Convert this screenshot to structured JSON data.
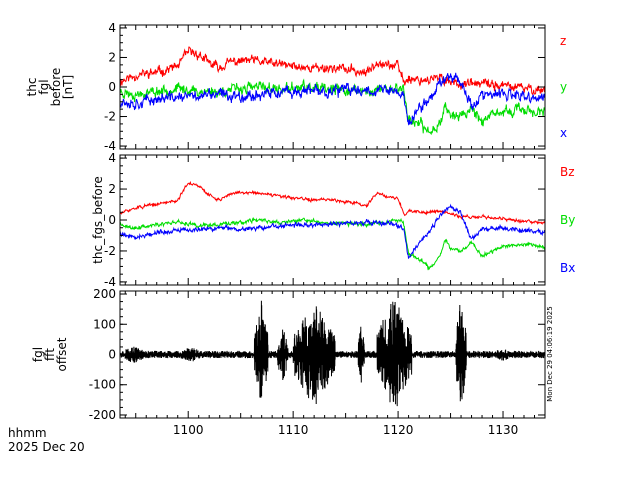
{
  "footer": {
    "time_format": "hhmm",
    "date": "2025 Dec 20"
  },
  "stamp": "Mon Dec 29 04:06:19 2025",
  "colors": {
    "red": "#ff0000",
    "green": "#00dd00",
    "blue": "#0000ff",
    "black": "#000000"
  },
  "chart_data": [
    {
      "type": "line",
      "ylabel_lines": [
        "thc",
        "fgl",
        "before",
        "[nT]"
      ],
      "xlim": [
        1093.5,
        1134
      ],
      "ylim": [
        -4.2,
        4.2
      ],
      "yticks": [
        -4,
        -2,
        0,
        2,
        4
      ],
      "xticks": [
        1100,
        1110,
        1120,
        1130
      ],
      "show_xtick_labels": false,
      "legend": "right",
      "series": [
        {
          "name": "z",
          "color": "#ff0000",
          "noise": 0.25,
          "seed": 11,
          "points": [
            [
              1093.5,
              0.4
            ],
            [
              1095,
              0.8
            ],
            [
              1097,
              1.0
            ],
            [
              1099,
              1.4
            ],
            [
              1100,
              2.4
            ],
            [
              1101,
              2.2
            ],
            [
              1102,
              1.6
            ],
            [
              1103,
              1.3
            ],
            [
              1104,
              1.7
            ],
            [
              1106,
              1.8
            ],
            [
              1108,
              1.6
            ],
            [
              1110,
              1.4
            ],
            [
              1112,
              1.3
            ],
            [
              1114,
              1.3
            ],
            [
              1116,
              1.1
            ],
            [
              1117,
              0.9
            ],
            [
              1118,
              1.8
            ],
            [
              1119,
              1.5
            ],
            [
              1120,
              1.4
            ],
            [
              1120.6,
              0.3
            ],
            [
              1121,
              0.6
            ],
            [
              1122,
              0.5
            ],
            [
              1123,
              0.5
            ],
            [
              1124,
              0.6
            ],
            [
              1126,
              0.2
            ],
            [
              1128,
              0.2
            ],
            [
              1130,
              0.1
            ],
            [
              1132,
              -0.1
            ],
            [
              1134,
              -0.2
            ]
          ]
        },
        {
          "name": "y",
          "color": "#00dd00",
          "noise": 0.28,
          "seed": 23,
          "points": [
            [
              1093.5,
              -0.3
            ],
            [
              1095,
              -0.5
            ],
            [
              1097,
              -0.3
            ],
            [
              1099,
              -0.1
            ],
            [
              1101,
              -0.3
            ],
            [
              1103,
              -0.3
            ],
            [
              1105,
              -0.1
            ],
            [
              1107,
              0.0
            ],
            [
              1109,
              -0.2
            ],
            [
              1111,
              0.0
            ],
            [
              1113,
              -0.2
            ],
            [
              1115,
              -0.2
            ],
            [
              1117,
              -0.3
            ],
            [
              1119,
              -0.1
            ],
            [
              1120.5,
              -0.1
            ],
            [
              1121,
              -2.2
            ],
            [
              1122,
              -2.5
            ],
            [
              1123,
              -3.1
            ],
            [
              1124,
              -2.4
            ],
            [
              1124.5,
              -1.2
            ],
            [
              1125,
              -1.9
            ],
            [
              1126,
              -2.0
            ],
            [
              1127,
              -1.4
            ],
            [
              1128,
              -2.3
            ],
            [
              1130,
              -1.7
            ],
            [
              1132,
              -1.5
            ],
            [
              1134,
              -1.8
            ]
          ]
        },
        {
          "name": "x",
          "color": "#0000ff",
          "noise": 0.3,
          "seed": 37,
          "points": [
            [
              1093.5,
              -0.9
            ],
            [
              1095,
              -1.1
            ],
            [
              1097,
              -0.8
            ],
            [
              1099,
              -0.7
            ],
            [
              1101,
              -0.6
            ],
            [
              1103,
              -0.5
            ],
            [
              1105,
              -0.6
            ],
            [
              1107,
              -0.5
            ],
            [
              1109,
              -0.4
            ],
            [
              1111,
              -0.3
            ],
            [
              1113,
              -0.3
            ],
            [
              1115,
              -0.2
            ],
            [
              1117,
              -0.2
            ],
            [
              1119,
              -0.2
            ],
            [
              1120.5,
              -0.5
            ],
            [
              1121,
              -2.5
            ],
            [
              1122,
              -1.5
            ],
            [
              1123,
              -0.8
            ],
            [
              1124,
              0.3
            ],
            [
              1125,
              0.9
            ],
            [
              1126,
              0.4
            ],
            [
              1127,
              -1.3
            ],
            [
              1128,
              -0.6
            ],
            [
              1130,
              -0.5
            ],
            [
              1132,
              -0.7
            ],
            [
              1134,
              -0.8
            ]
          ]
        }
      ]
    },
    {
      "type": "line",
      "ylabel_lines": [
        "thc_fgs_before"
      ],
      "xlim": [
        1093.5,
        1134
      ],
      "ylim": [
        -4.2,
        4.2
      ],
      "yticks": [
        -4,
        -2,
        0,
        2,
        4
      ],
      "xticks": [
        1100,
        1110,
        1120,
        1130
      ],
      "show_xtick_labels": false,
      "legend": "right",
      "series": [
        {
          "name": "Bz",
          "color": "#ff0000",
          "noise": 0.08,
          "seed": 51,
          "points": [
            [
              1093.5,
              0.4
            ],
            [
              1095,
              0.8
            ],
            [
              1097,
              1.0
            ],
            [
              1099,
              1.3
            ],
            [
              1100,
              2.4
            ],
            [
              1101,
              2.2
            ],
            [
              1102,
              1.6
            ],
            [
              1103,
              1.3
            ],
            [
              1104,
              1.7
            ],
            [
              1106,
              1.8
            ],
            [
              1108,
              1.6
            ],
            [
              1110,
              1.4
            ],
            [
              1112,
              1.3
            ],
            [
              1114,
              1.3
            ],
            [
              1116,
              1.1
            ],
            [
              1117,
              0.9
            ],
            [
              1118,
              1.8
            ],
            [
              1119,
              1.5
            ],
            [
              1120,
              1.4
            ],
            [
              1120.6,
              0.3
            ],
            [
              1121,
              0.6
            ],
            [
              1122,
              0.5
            ],
            [
              1123,
              0.5
            ],
            [
              1124,
              0.6
            ],
            [
              1126,
              0.2
            ],
            [
              1128,
              0.2
            ],
            [
              1130,
              0.1
            ],
            [
              1132,
              -0.1
            ],
            [
              1134,
              -0.2
            ]
          ]
        },
        {
          "name": "By",
          "color": "#00dd00",
          "noise": 0.1,
          "seed": 63,
          "points": [
            [
              1093.5,
              -0.3
            ],
            [
              1095,
              -0.5
            ],
            [
              1097,
              -0.3
            ],
            [
              1099,
              -0.1
            ],
            [
              1101,
              -0.3
            ],
            [
              1103,
              -0.3
            ],
            [
              1105,
              -0.1
            ],
            [
              1107,
              0.0
            ],
            [
              1109,
              -0.2
            ],
            [
              1111,
              0.0
            ],
            [
              1113,
              -0.2
            ],
            [
              1115,
              -0.2
            ],
            [
              1117,
              -0.3
            ],
            [
              1119,
              -0.1
            ],
            [
              1120.5,
              -0.1
            ],
            [
              1121,
              -2.2
            ],
            [
              1122,
              -2.5
            ],
            [
              1123,
              -3.1
            ],
            [
              1124,
              -2.4
            ],
            [
              1124.5,
              -1.2
            ],
            [
              1125,
              -1.9
            ],
            [
              1126,
              -2.0
            ],
            [
              1127,
              -1.4
            ],
            [
              1128,
              -2.3
            ],
            [
              1130,
              -1.7
            ],
            [
              1132,
              -1.5
            ],
            [
              1134,
              -1.8
            ]
          ]
        },
        {
          "name": "Bx",
          "color": "#0000ff",
          "noise": 0.12,
          "seed": 79,
          "points": [
            [
              1093.5,
              -0.9
            ],
            [
              1095,
              -1.1
            ],
            [
              1097,
              -0.8
            ],
            [
              1099,
              -0.7
            ],
            [
              1101,
              -0.6
            ],
            [
              1103,
              -0.5
            ],
            [
              1105,
              -0.6
            ],
            [
              1107,
              -0.5
            ],
            [
              1109,
              -0.4
            ],
            [
              1111,
              -0.3
            ],
            [
              1113,
              -0.3
            ],
            [
              1115,
              -0.2
            ],
            [
              1117,
              -0.2
            ],
            [
              1119,
              -0.2
            ],
            [
              1120.5,
              -0.5
            ],
            [
              1121,
              -2.5
            ],
            [
              1122,
              -1.5
            ],
            [
              1123,
              -0.8
            ],
            [
              1124,
              0.3
            ],
            [
              1125,
              0.9
            ],
            [
              1126,
              0.4
            ],
            [
              1127,
              -1.3
            ],
            [
              1128,
              -0.6
            ],
            [
              1130,
              -0.5
            ],
            [
              1132,
              -0.7
            ],
            [
              1134,
              -0.8
            ]
          ]
        }
      ]
    },
    {
      "type": "line",
      "ylabel_lines": [
        "fgl",
        "fft",
        "offset"
      ],
      "xlim": [
        1093.5,
        1134
      ],
      "ylim": [
        -210,
        210
      ],
      "yticks": [
        -200,
        -100,
        0,
        100,
        200
      ],
      "xticks": [
        1100,
        1110,
        1120,
        1130
      ],
      "show_xtick_labels": true,
      "series": [
        {
          "name": "",
          "color": "#000000",
          "noise": 1,
          "seed": 97,
          "baseline_amplitude": 12,
          "bursts": [
            {
              "x": [
                1106.3,
                1107.6
              ],
              "amp": 185
            },
            {
              "x": [
                1108.5,
                1109.5
              ],
              "amp": 95
            },
            {
              "x": [
                1110.0,
                1114.0
              ],
              "amp": 175
            },
            {
              "x": [
                1116.2,
                1116.8
              ],
              "amp": 110
            },
            {
              "x": [
                1118.0,
                1121.3
              ],
              "amp": 200
            },
            {
              "x": [
                1125.5,
                1126.5
              ],
              "amp": 195
            },
            {
              "x": [
                1099.0,
                1101.5
              ],
              "amp": 25
            },
            {
              "x": [
                1093.5,
                1096.0
              ],
              "amp": 30
            },
            {
              "x": [
                1129.0,
                1131.0
              ],
              "amp": 22
            }
          ]
        }
      ]
    }
  ]
}
